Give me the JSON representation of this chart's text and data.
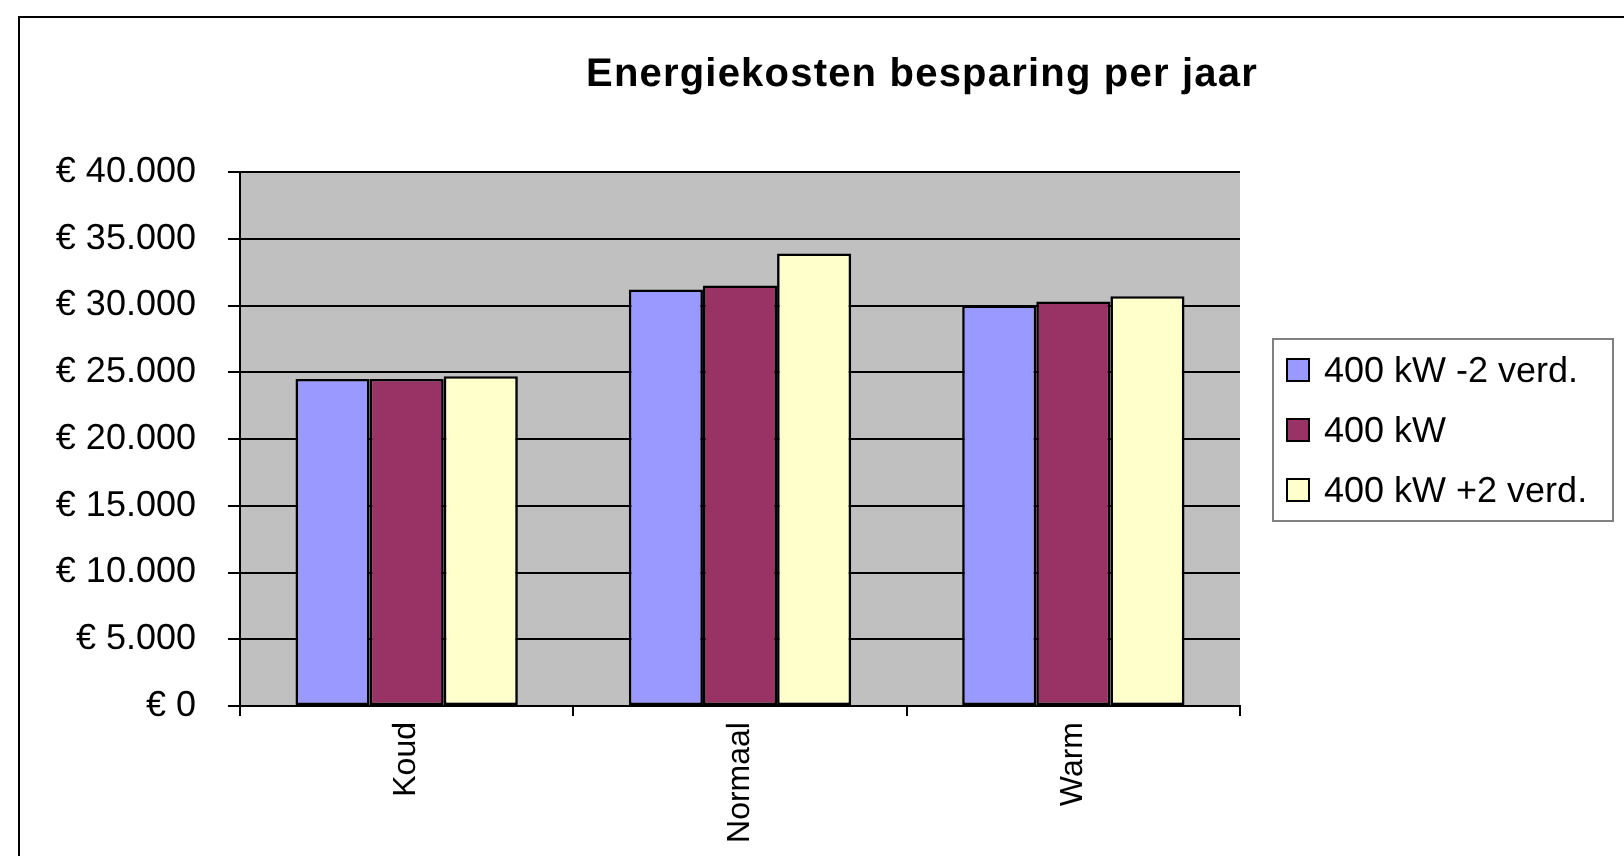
{
  "chart_data": {
    "type": "bar",
    "title": "Energiekosten besparing per jaar",
    "categories": [
      "Koud",
      "Normaal",
      "Warm"
    ],
    "series": [
      {
        "name": "400 kW -2 verd.",
        "color": "#9999ff",
        "values": [
          24500,
          31200,
          30000
        ]
      },
      {
        "name": "400 kW",
        "color": "#993366",
        "values": [
          24500,
          31500,
          30300
        ]
      },
      {
        "name": "400 kW +2 verd.",
        "color": "#ffffcc",
        "values": [
          24700,
          33900,
          30700
        ]
      }
    ],
    "ylim": [
      0,
      40000
    ],
    "yticks": [
      {
        "value": 0,
        "label": "€ 0"
      },
      {
        "value": 5000,
        "label": "€ 5.000"
      },
      {
        "value": 10000,
        "label": "€ 10.000"
      },
      {
        "value": 15000,
        "label": "€ 15.000"
      },
      {
        "value": 20000,
        "label": "€ 20.000"
      },
      {
        "value": 25000,
        "label": "€ 25.000"
      },
      {
        "value": 30000,
        "label": "€ 30.000"
      },
      {
        "value": 35000,
        "label": "€ 35.000"
      },
      {
        "value": 40000,
        "label": "€ 40.000"
      }
    ],
    "grid": "y",
    "legend": "right"
  }
}
